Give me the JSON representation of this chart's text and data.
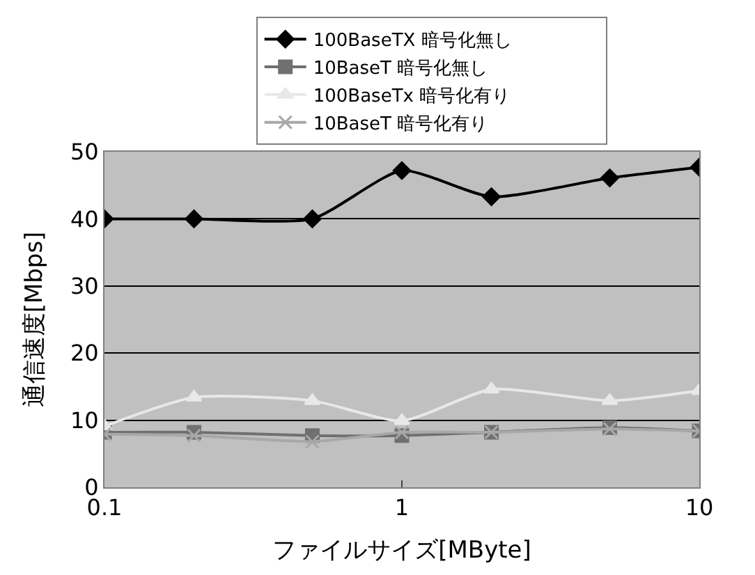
{
  "chart_data": {
    "type": "line",
    "xlabel": "ファイルサイズ[MByte]",
    "ylabel": "通信速度[Mbps]",
    "x": [
      0.1,
      0.2,
      0.5,
      1,
      2,
      5,
      10
    ],
    "series": [
      {
        "name": "100BaseTX 暗号化無し",
        "color": "#000000",
        "marker": "diamond",
        "values": [
          40,
          40,
          40,
          47.2,
          43.3,
          46.1,
          47.7
        ]
      },
      {
        "name": "10BaseT 暗号化無し",
        "color": "#707070",
        "marker": "square",
        "values": [
          8.2,
          8.2,
          7.7,
          7.7,
          8.2,
          8.9,
          8.4
        ]
      },
      {
        "name": "100BaseTx 暗号化有り",
        "color": "#e8e8e8",
        "marker": "triangle",
        "values": [
          9.1,
          13.4,
          12.9,
          9.9,
          14.6,
          12.9,
          14.4
        ]
      },
      {
        "name": "10BaseT 暗号化有り",
        "color": "#a8a8a8",
        "marker": "cross",
        "values": [
          7.9,
          7.7,
          6.8,
          8.2,
          8.2,
          8.7,
          8.4
        ]
      }
    ],
    "log": "x",
    "xlim": [
      0.1,
      10
    ],
    "xticks": [
      0.1,
      1,
      10
    ],
    "ylim": [
      0,
      50
    ],
    "yticks": [
      0,
      10,
      20,
      30,
      40,
      50
    ],
    "grid": "y",
    "legend": "top",
    "line_style": "solid"
  }
}
